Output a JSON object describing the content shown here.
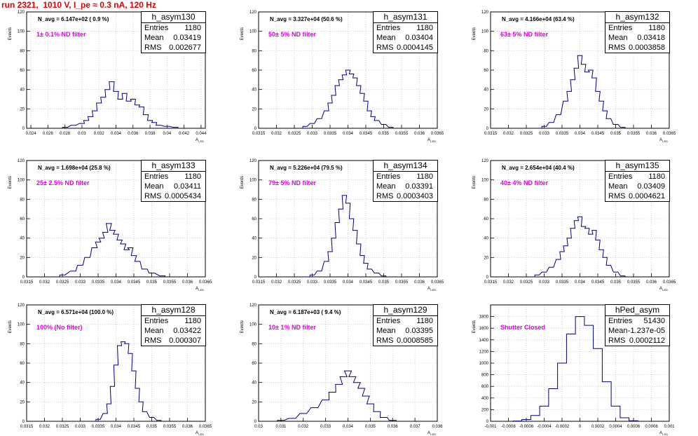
{
  "title": "run 2321,  1010 V, I_pe ≈ 0.3 nA, 120 Hz",
  "colors": {
    "title": "#e00000",
    "annotation": "#e000e0",
    "histogram": "#000080",
    "grid": "#c8c8c8"
  },
  "ylabel": "Events",
  "xlabel_main": "A",
  "xlabel_sub": "LED",
  "stat_labels": {
    "entries": "Entries",
    "mean": "Mean",
    "rms": "RMS"
  },
  "panels": [
    {
      "name": "h_asym130",
      "entries": "1180",
      "mean": "0.03419",
      "rms": "0.002677",
      "navg": "N_avg = 6.147e+02 ( 0.9 %)",
      "filter": "1± 0.1% ND filter",
      "xmin": 0.0235,
      "xmax": 0.0445,
      "ymax": 120,
      "xticks": [
        "0.024",
        "0.026",
        "0.028",
        "0.03",
        "0.032",
        "0.034",
        "0.036",
        "0.038",
        "0.04",
        "0.042",
        "0.044"
      ],
      "xtick_values": [
        0.024,
        0.026,
        0.028,
        0.03,
        0.032,
        0.034,
        0.036,
        0.038,
        0.04,
        0.042,
        0.044
      ],
      "yticks": [
        0,
        20,
        40,
        60,
        80,
        100,
        120
      ]
    },
    {
      "name": "h_asym131",
      "entries": "1180",
      "mean": "0.03404",
      "rms": "0.0004145",
      "navg": "N_avg = 3.327e+04 (50.6 %)",
      "filter": "50± 5% ND filter",
      "xmin": 0.0315,
      "xmax": 0.0365,
      "ymax": 120,
      "xticks": [
        "0.0315",
        "0.032",
        "0.0325",
        "0.033",
        "0.0335",
        "0.034",
        "0.0345",
        "0.035",
        "0.0355",
        "0.036",
        "0.0365"
      ],
      "xtick_values": [
        0.0315,
        0.032,
        0.0325,
        0.033,
        0.0335,
        0.034,
        0.0345,
        0.035,
        0.0355,
        0.036,
        0.0365
      ],
      "yticks": [
        0,
        20,
        40,
        60,
        80,
        100,
        120
      ]
    },
    {
      "name": "h_asym132",
      "entries": "1180",
      "mean": "0.03418",
      "rms": "0.0003858",
      "navg": "N_avg = 4.166e+04 (63.4 %)",
      "filter": "63± 5% ND filter",
      "xmin": 0.0315,
      "xmax": 0.0365,
      "ymax": 120,
      "xticks": [
        "0.0315",
        "0.032",
        "0.0325",
        "0.033",
        "0.0335",
        "0.034",
        "0.0345",
        "0.035",
        "0.0355",
        "0.036",
        "0.0365"
      ],
      "xtick_values": [
        0.0315,
        0.032,
        0.0325,
        0.033,
        0.0335,
        0.034,
        0.0345,
        0.035,
        0.0355,
        0.036,
        0.0365
      ],
      "yticks": [
        0,
        20,
        40,
        60,
        80,
        100,
        120
      ]
    },
    {
      "name": "h_asym133",
      "entries": "1180",
      "mean": "0.03411",
      "rms": "0.0005434",
      "navg": "N_avg = 1.698e+04 (25.8 %)",
      "filter": "25± 2.5% ND filter",
      "xmin": 0.0315,
      "xmax": 0.0365,
      "ymax": 120,
      "xticks": [
        "0.0315",
        "0.032",
        "0.0325",
        "0.033",
        "0.0335",
        "0.034",
        "0.0345",
        "0.035",
        "0.0355",
        "0.036",
        "0.0365"
      ],
      "xtick_values": [
        0.0315,
        0.032,
        0.0325,
        0.033,
        0.0335,
        0.034,
        0.0345,
        0.035,
        0.0355,
        0.036,
        0.0365
      ],
      "yticks": [
        0,
        20,
        40,
        60,
        80,
        100,
        120
      ]
    },
    {
      "name": "h_asym134",
      "entries": "1180",
      "mean": "0.03391",
      "rms": "0.0003403",
      "navg": "N_avg = 5.226e+04 (79.5 %)",
      "filter": "79± 5% ND filter",
      "xmin": 0.0315,
      "xmax": 0.0365,
      "ymax": 120,
      "xticks": [
        "0.0315",
        "0.032",
        "0.0325",
        "0.033",
        "0.0335",
        "0.034",
        "0.0345",
        "0.035",
        "0.0355",
        "0.036",
        "0.0365"
      ],
      "xtick_values": [
        0.0315,
        0.032,
        0.0325,
        0.033,
        0.0335,
        0.034,
        0.0345,
        0.035,
        0.0355,
        0.036,
        0.0365
      ],
      "yticks": [
        0,
        20,
        40,
        60,
        80,
        100,
        120
      ]
    },
    {
      "name": "h_asym135",
      "entries": "1180",
      "mean": "0.03409",
      "rms": "0.0004621",
      "navg": "N_avg = 2.654e+04 (40.4 %)",
      "filter": "40± 4% ND filter",
      "xmin": 0.0315,
      "xmax": 0.0365,
      "ymax": 120,
      "xticks": [
        "0.0315",
        "0.032",
        "0.0325",
        "0.033",
        "0.0335",
        "0.034",
        "0.0345",
        "0.035",
        "0.0355",
        "0.036",
        "0.0365"
      ],
      "xtick_values": [
        0.0315,
        0.032,
        0.0325,
        0.033,
        0.0335,
        0.034,
        0.0345,
        0.035,
        0.0355,
        0.036,
        0.0365
      ],
      "yticks": [
        0,
        20,
        40,
        60,
        80,
        100,
        120
      ]
    },
    {
      "name": "h_asym128",
      "entries": "1180",
      "mean": "0.03422",
      "rms": "0.000307",
      "navg": "N_avg = 6.571e+04 (100.0 %)",
      "filter": "100% (No filter)",
      "xmin": 0.0315,
      "xmax": 0.0365,
      "ymax": 120,
      "xticks": [
        "0.0315",
        "0.032",
        "0.0325",
        "0.033",
        "0.0335",
        "0.034",
        "0.0345",
        "0.035",
        "0.0355",
        "0.036",
        "0.0365"
      ],
      "xtick_values": [
        0.0315,
        0.032,
        0.0325,
        0.033,
        0.0335,
        0.034,
        0.0345,
        0.035,
        0.0355,
        0.036,
        0.0365
      ],
      "yticks": [
        0,
        20,
        40,
        60,
        80,
        100,
        120
      ]
    },
    {
      "name": "h_asym129",
      "entries": "1180",
      "mean": "0.03395",
      "rms": "0.0008585",
      "navg": "N_avg = 6.187e+03 ( 9.4 %)",
      "filter": "10± 1% ND filter",
      "xmin": 0.03,
      "xmax": 0.038,
      "ymax": 120,
      "xticks": [
        "0.03",
        "0.031",
        "0.032",
        "0.033",
        "0.034",
        "0.035",
        "0.036",
        "0.037",
        "0.038"
      ],
      "xtick_values": [
        0.03,
        0.031,
        0.032,
        0.033,
        0.034,
        0.035,
        0.036,
        0.037,
        0.038
      ],
      "yticks": [
        0,
        20,
        40,
        60,
        80,
        100,
        120
      ]
    },
    {
      "name": "hPed_asym",
      "entries": "51430",
      "mean": "-1.237e-05",
      "rms": "0.0002112",
      "navg": "",
      "filter": "Shutter Closed",
      "xmin": -0.001,
      "xmax": 0.001,
      "ymax": 2000,
      "xticks": [
        "-0.001",
        "-0.0008",
        "-0.0006",
        "-0.0004",
        "-0.0002",
        "0",
        "0.0002",
        "0.0004",
        "0.0006",
        "0.0008",
        "0.001"
      ],
      "xtick_values": [
        -0.001,
        -0.0008,
        -0.0006,
        -0.0004,
        -0.0002,
        0,
        0.0002,
        0.0004,
        0.0006,
        0.0008,
        0.001
      ],
      "yticks": [
        0,
        200,
        400,
        600,
        800,
        1000,
        1200,
        1400,
        1600,
        1800
      ]
    }
  ],
  "chart_data": [
    {
      "type": "bar",
      "title": "h_asym130",
      "ylabel": "Events",
      "xlabel": "A LED",
      "ylim": [
        0,
        120
      ],
      "xlim": [
        0.0235,
        0.0445
      ],
      "grid": true,
      "x": [
        0.028,
        0.029,
        0.03,
        0.0305,
        0.031,
        0.0315,
        0.032,
        0.0325,
        0.033,
        0.0335,
        0.034,
        0.0345,
        0.035,
        0.0355,
        0.036,
        0.0365,
        0.037,
        0.0375,
        0.038,
        0.0385,
        0.039,
        0.04,
        0.041
      ],
      "values": [
        1,
        3,
        5,
        8,
        12,
        18,
        26,
        32,
        40,
        48,
        38,
        30,
        36,
        28,
        30,
        24,
        22,
        14,
        8,
        6,
        3,
        2,
        1
      ]
    },
    {
      "type": "bar",
      "title": "h_asym131",
      "ylabel": "Events",
      "xlabel": "A LED",
      "ylim": [
        0,
        120
      ],
      "xlim": [
        0.0315,
        0.0365
      ],
      "grid": true,
      "x": [
        0.0328,
        0.033,
        0.0332,
        0.0334,
        0.0335,
        0.0336,
        0.0337,
        0.0338,
        0.0339,
        0.034,
        0.0341,
        0.0342,
        0.0343,
        0.0344,
        0.0345,
        0.0346,
        0.0347,
        0.0348,
        0.035,
        0.0352
      ],
      "values": [
        2,
        5,
        10,
        18,
        26,
        34,
        44,
        50,
        55,
        60,
        56,
        52,
        44,
        36,
        28,
        18,
        12,
        8,
        4,
        1
      ]
    },
    {
      "type": "bar",
      "title": "h_asym132",
      "ylabel": "Events",
      "xlabel": "A LED",
      "ylim": [
        0,
        120
      ],
      "xlim": [
        0.0315,
        0.0365
      ],
      "grid": true,
      "x": [
        0.033,
        0.0332,
        0.0334,
        0.0336,
        0.0337,
        0.0338,
        0.0339,
        0.034,
        0.0341,
        0.0342,
        0.0343,
        0.0344,
        0.0345,
        0.0346,
        0.0347,
        0.0348,
        0.035,
        0.0352
      ],
      "values": [
        2,
        6,
        14,
        28,
        38,
        50,
        62,
        75,
        66,
        58,
        60,
        52,
        38,
        28,
        18,
        10,
        4,
        1
      ]
    },
    {
      "type": "bar",
      "title": "h_asym133",
      "ylabel": "Events",
      "xlabel": "A LED",
      "ylim": [
        0,
        120
      ],
      "xlim": [
        0.0315,
        0.0365
      ],
      "grid": true,
      "x": [
        0.0325,
        0.0328,
        0.033,
        0.0332,
        0.0334,
        0.0335,
        0.0336,
        0.0337,
        0.0338,
        0.0339,
        0.034,
        0.0341,
        0.0342,
        0.0343,
        0.0344,
        0.0345,
        0.0346,
        0.0348,
        0.035,
        0.0353
      ],
      "values": [
        2,
        6,
        12,
        20,
        30,
        36,
        40,
        46,
        55,
        48,
        44,
        38,
        34,
        28,
        30,
        22,
        16,
        8,
        4,
        1
      ]
    },
    {
      "type": "bar",
      "title": "h_asym134",
      "ylabel": "Events",
      "xlabel": "A LED",
      "ylim": [
        0,
        120
      ],
      "xlim": [
        0.0315,
        0.0365
      ],
      "grid": true,
      "x": [
        0.033,
        0.0332,
        0.0334,
        0.0335,
        0.0336,
        0.0337,
        0.0338,
        0.0339,
        0.034,
        0.0341,
        0.0342,
        0.0343,
        0.0344,
        0.0345,
        0.0346,
        0.0348,
        0.035
      ],
      "values": [
        2,
        6,
        16,
        26,
        40,
        56,
        70,
        84,
        76,
        60,
        48,
        34,
        22,
        14,
        8,
        4,
        1
      ]
    },
    {
      "type": "bar",
      "title": "h_asym135",
      "ylabel": "Events",
      "xlabel": "A LED",
      "ylim": [
        0,
        120
      ],
      "xlim": [
        0.0315,
        0.0365
      ],
      "grid": true,
      "x": [
        0.0328,
        0.033,
        0.0332,
        0.0334,
        0.0335,
        0.0336,
        0.0337,
        0.0338,
        0.0339,
        0.034,
        0.0341,
        0.0342,
        0.0343,
        0.0344,
        0.0345,
        0.0346,
        0.0347,
        0.0348,
        0.035,
        0.0352
      ],
      "values": [
        2,
        5,
        10,
        18,
        26,
        32,
        40,
        50,
        58,
        62,
        52,
        50,
        44,
        48,
        38,
        28,
        20,
        12,
        5,
        1
      ]
    },
    {
      "type": "bar",
      "title": "h_asym128",
      "ylabel": "Events",
      "xlabel": "A LED",
      "ylim": [
        0,
        120
      ],
      "xlim": [
        0.0315,
        0.0365
      ],
      "grid": true,
      "x": [
        0.0335,
        0.0337,
        0.0338,
        0.0339,
        0.034,
        0.0341,
        0.0342,
        0.0343,
        0.0344,
        0.0345,
        0.0346,
        0.0347,
        0.0348,
        0.035,
        0.0352
      ],
      "values": [
        2,
        8,
        18,
        36,
        58,
        78,
        82,
        80,
        70,
        52,
        34,
        20,
        10,
        4,
        1
      ]
    },
    {
      "type": "bar",
      "title": "h_asym129",
      "ylabel": "Events",
      "xlabel": "A LED",
      "ylim": [
        0,
        120
      ],
      "xlim": [
        0.03,
        0.038
      ],
      "grid": true,
      "x": [
        0.031,
        0.0315,
        0.032,
        0.0325,
        0.033,
        0.0333,
        0.0336,
        0.0338,
        0.034,
        0.0342,
        0.0344,
        0.0346,
        0.0348,
        0.035,
        0.0353,
        0.0356,
        0.036
      ],
      "values": [
        1,
        3,
        8,
        14,
        22,
        30,
        38,
        46,
        52,
        46,
        40,
        34,
        26,
        18,
        10,
        4,
        1
      ]
    },
    {
      "type": "bar",
      "title": "hPed_asym",
      "ylabel": "Events",
      "xlabel": "A LED",
      "ylim": [
        0,
        2000
      ],
      "xlim": [
        -0.001,
        0.001
      ],
      "grid": true,
      "x": [
        -0.0007,
        -0.0006,
        -0.0005,
        -0.0004,
        -0.0003,
        -0.0002,
        -0.0001,
        0.0,
        0.0001,
        0.0002,
        0.0003,
        0.0004,
        0.0005,
        0.0006
      ],
      "values": [
        5,
        30,
        100,
        260,
        560,
        1000,
        1500,
        1800,
        1650,
        1250,
        680,
        260,
        60,
        8
      ]
    }
  ]
}
